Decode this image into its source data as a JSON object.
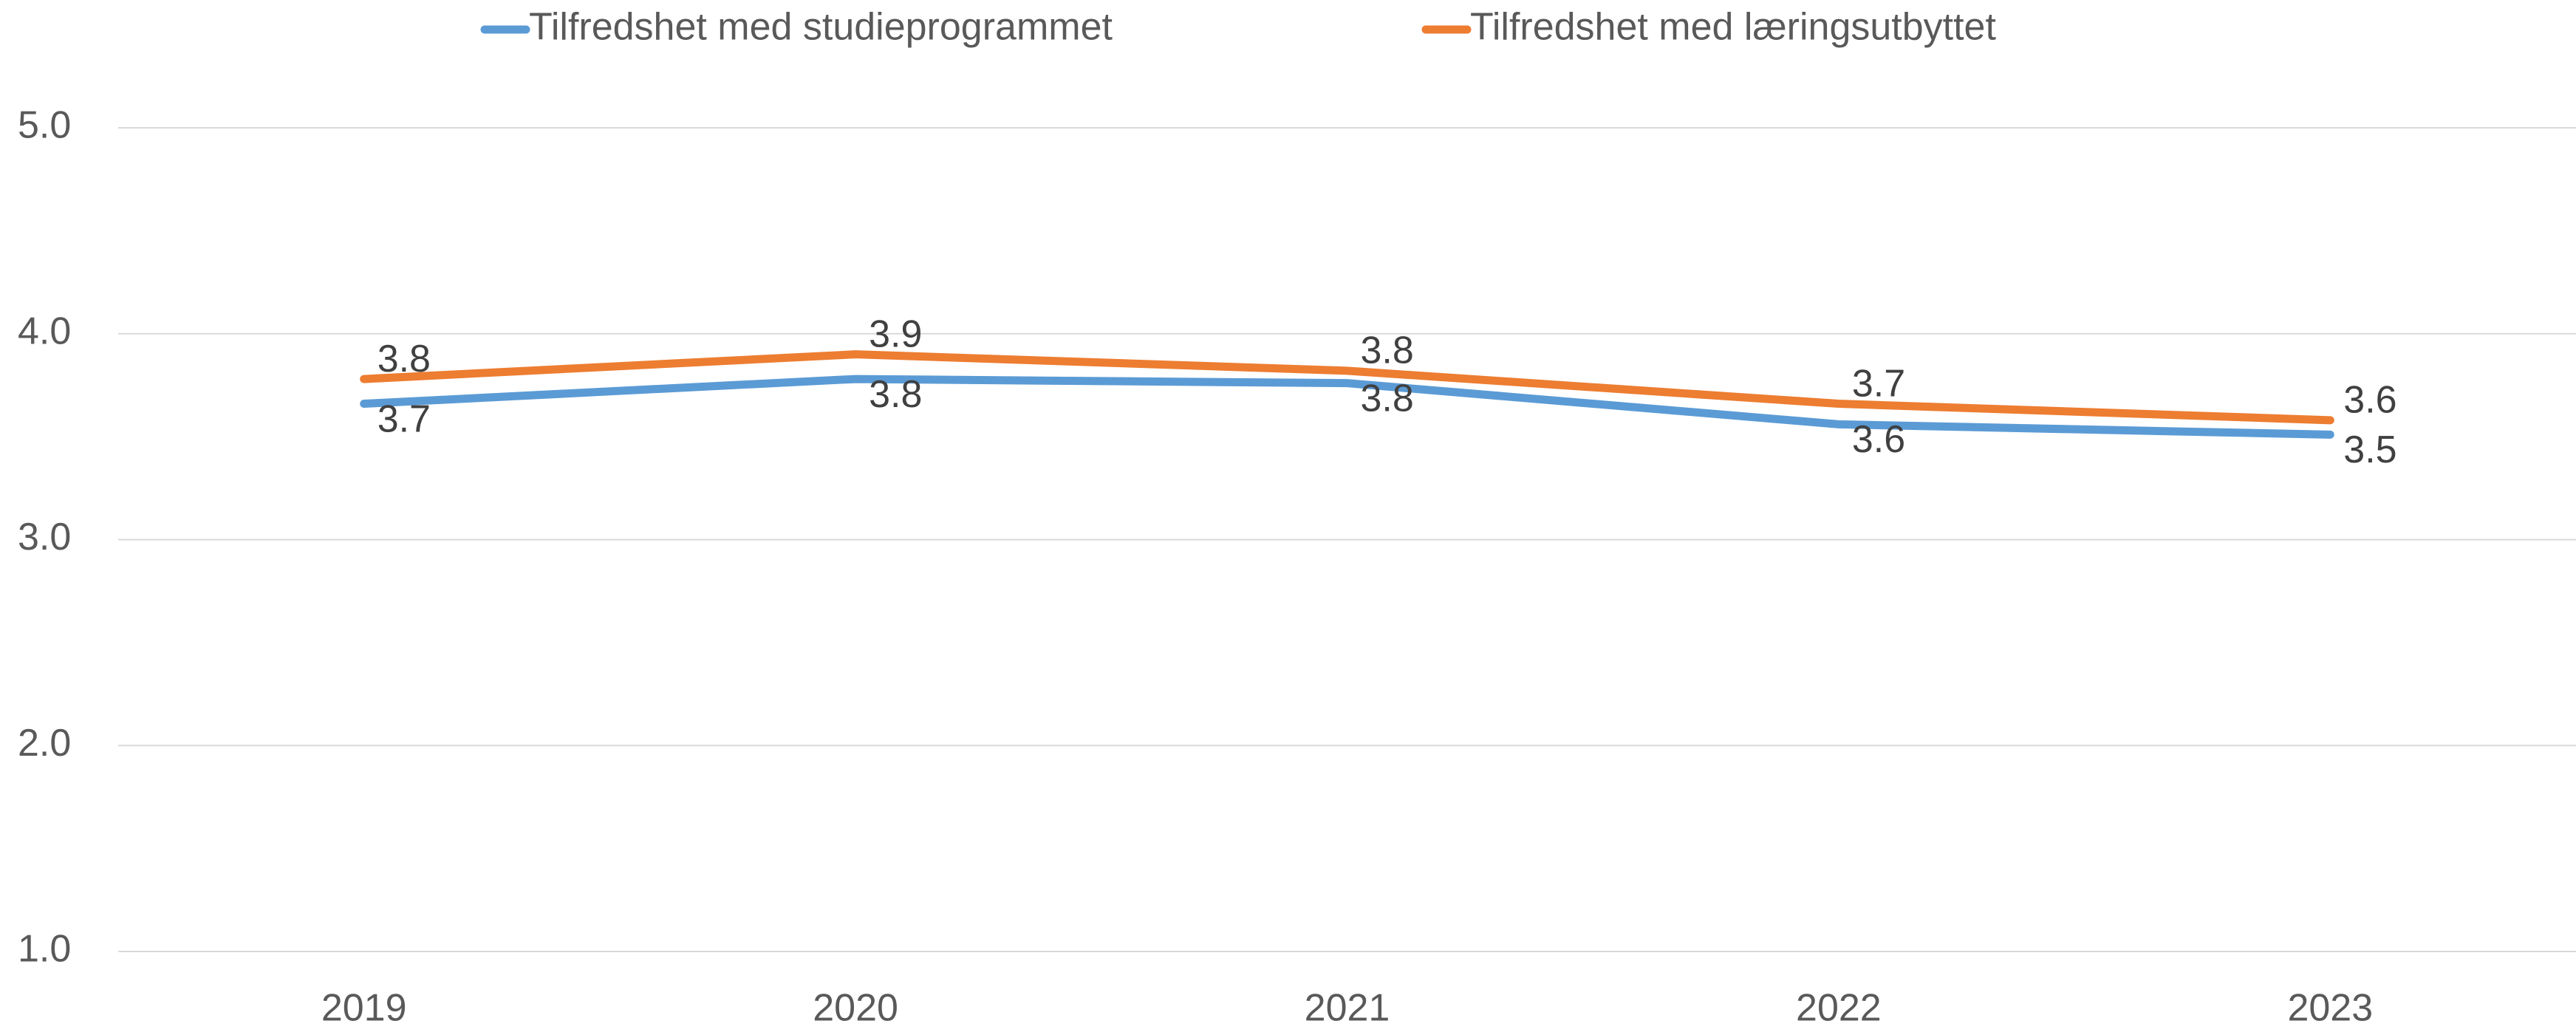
{
  "chart_data": {
    "type": "line",
    "categories": [
      "2019",
      "2020",
      "2021",
      "2022",
      "2023"
    ],
    "series": [
      {
        "name": "Tilfredshet med studieprogrammet",
        "color": "#5b9bd5",
        "values": [
          3.66,
          3.78,
          3.76,
          3.56,
          3.51
        ],
        "value_labels": [
          "3.7",
          "3.8",
          "3.8",
          "3.6",
          "3.5"
        ]
      },
      {
        "name": "Tilfredshet med læringsutbyttet",
        "color": "#ed7d31",
        "values": [
          3.78,
          3.9,
          3.82,
          3.66,
          3.58
        ],
        "value_labels": [
          "3.8",
          "3.9",
          "3.8",
          "3.7",
          "3.6"
        ]
      }
    ],
    "ylim": [
      1,
      5
    ],
    "yticks": [
      {
        "value": 1,
        "label": "1.0"
      },
      {
        "value": 2,
        "label": "2.0"
      },
      {
        "value": 3,
        "label": "3.0"
      },
      {
        "value": 4,
        "label": "4.0"
      },
      {
        "value": 5,
        "label": "5.0"
      }
    ],
    "grid": true,
    "legend": "top"
  }
}
